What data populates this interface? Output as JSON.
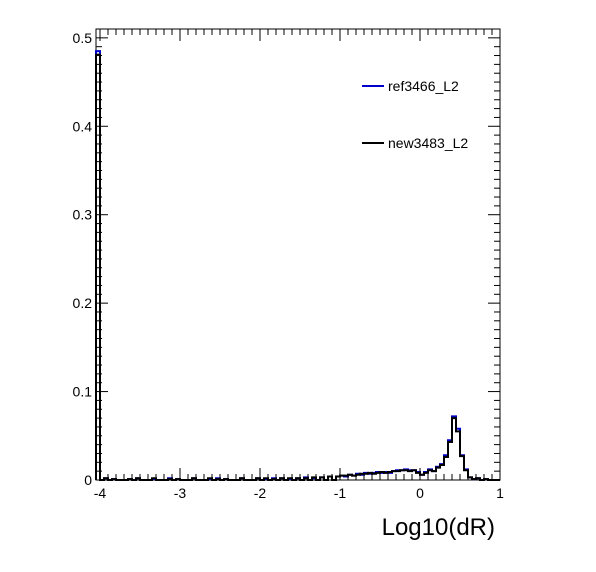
{
  "chart_data": {
    "type": "line",
    "title": "",
    "xlabel": "Log10(dR)",
    "ylabel": "",
    "xlim": [
      -4.05,
      1.0
    ],
    "ylim": [
      0,
      0.51
    ],
    "grid": false,
    "legend_position": "top-right",
    "x_ticks": [
      "-4",
      "-3",
      "-2",
      "-1",
      "0",
      "1"
    ],
    "y_ticks": [
      "0",
      "0.1",
      "0.2",
      "0.3",
      "0.4",
      "0.5"
    ],
    "bin_width": 0.05,
    "series": [
      {
        "name": "ref3466_L2",
        "color": "#0000cc",
        "bins": [
          [
            -4.05,
            0.485
          ],
          [
            -4.0,
            0.0
          ],
          [
            -3.95,
            0.002
          ],
          [
            -3.9,
            0.0
          ],
          [
            -3.85,
            0.001
          ],
          [
            -3.65,
            0.001
          ],
          [
            -3.55,
            0.002
          ],
          [
            -3.35,
            0.001
          ],
          [
            -3.15,
            0.002
          ],
          [
            -3.05,
            0.001
          ],
          [
            -2.85,
            0.002
          ],
          [
            -2.65,
            0.001
          ],
          [
            -2.55,
            0.002
          ],
          [
            -2.45,
            0.001
          ],
          [
            -2.25,
            0.002
          ],
          [
            -2.05,
            0.002
          ],
          [
            -1.95,
            0.001
          ],
          [
            -1.85,
            0.002
          ],
          [
            -1.75,
            0.002
          ],
          [
            -1.65,
            0.001
          ],
          [
            -1.55,
            0.002
          ],
          [
            -1.45,
            0.003
          ],
          [
            -1.35,
            0.002
          ],
          [
            -1.25,
            0.003
          ],
          [
            -1.15,
            0.004
          ],
          [
            -1.05,
            0.004
          ],
          [
            -1.0,
            0.005
          ],
          [
            -0.95,
            0.004
          ],
          [
            -0.9,
            0.006
          ],
          [
            -0.85,
            0.005
          ],
          [
            -0.8,
            0.007
          ],
          [
            -0.75,
            0.006
          ],
          [
            -0.7,
            0.008
          ],
          [
            -0.65,
            0.007
          ],
          [
            -0.6,
            0.008
          ],
          [
            -0.55,
            0.009
          ],
          [
            -0.5,
            0.008
          ],
          [
            -0.45,
            0.009
          ],
          [
            -0.4,
            0.008
          ],
          [
            -0.35,
            0.01
          ],
          [
            -0.3,
            0.011
          ],
          [
            -0.25,
            0.011
          ],
          [
            -0.2,
            0.012
          ],
          [
            -0.15,
            0.011
          ],
          [
            -0.1,
            0.011
          ],
          [
            -0.05,
            0.009
          ],
          [
            0.0,
            0.006
          ],
          [
            0.05,
            0.009
          ],
          [
            0.1,
            0.012
          ],
          [
            0.15,
            0.01
          ],
          [
            0.2,
            0.015
          ],
          [
            0.25,
            0.018
          ],
          [
            0.3,
            0.028
          ],
          [
            0.35,
            0.045
          ],
          [
            0.4,
            0.072
          ],
          [
            0.45,
            0.058
          ],
          [
            0.5,
            0.028
          ],
          [
            0.55,
            0.012
          ],
          [
            0.6,
            0.003
          ],
          [
            0.65,
            0.001
          ],
          [
            0.7,
            0.002
          ],
          [
            0.75,
            0.0
          ],
          [
            0.8,
            0.001
          ],
          [
            0.85,
            0.0
          ],
          [
            0.9,
            0.0
          ],
          [
            0.95,
            0.0
          ]
        ]
      },
      {
        "name": "new3483_L2",
        "color": "#000000",
        "bins": [
          [
            -4.05,
            0.481
          ],
          [
            -4.0,
            0.0
          ],
          [
            -3.95,
            0.002
          ],
          [
            -3.9,
            0.0
          ],
          [
            -3.85,
            0.001
          ],
          [
            -3.65,
            0.001
          ],
          [
            -3.55,
            0.002
          ],
          [
            -3.35,
            0.002
          ],
          [
            -3.15,
            0.001
          ],
          [
            -3.05,
            0.001
          ],
          [
            -2.85,
            0.002
          ],
          [
            -2.65,
            0.002
          ],
          [
            -2.55,
            0.001
          ],
          [
            -2.45,
            0.001
          ],
          [
            -2.25,
            0.002
          ],
          [
            -2.05,
            0.002
          ],
          [
            -1.95,
            0.002
          ],
          [
            -1.85,
            0.001
          ],
          [
            -1.75,
            0.002
          ],
          [
            -1.65,
            0.002
          ],
          [
            -1.55,
            0.002
          ],
          [
            -1.45,
            0.002
          ],
          [
            -1.35,
            0.003
          ],
          [
            -1.25,
            0.003
          ],
          [
            -1.15,
            0.004
          ],
          [
            -1.05,
            0.004
          ],
          [
            -1.0,
            0.005
          ],
          [
            -0.95,
            0.005
          ],
          [
            -0.9,
            0.006
          ],
          [
            -0.85,
            0.005
          ],
          [
            -0.8,
            0.006
          ],
          [
            -0.75,
            0.007
          ],
          [
            -0.7,
            0.007
          ],
          [
            -0.65,
            0.008
          ],
          [
            -0.6,
            0.007
          ],
          [
            -0.55,
            0.008
          ],
          [
            -0.5,
            0.009
          ],
          [
            -0.45,
            0.008
          ],
          [
            -0.4,
            0.009
          ],
          [
            -0.35,
            0.01
          ],
          [
            -0.3,
            0.01
          ],
          [
            -0.25,
            0.011
          ],
          [
            -0.2,
            0.011
          ],
          [
            -0.15,
            0.01
          ],
          [
            -0.1,
            0.011
          ],
          [
            -0.05,
            0.008
          ],
          [
            0.0,
            0.006
          ],
          [
            0.05,
            0.008
          ],
          [
            0.1,
            0.011
          ],
          [
            0.15,
            0.01
          ],
          [
            0.2,
            0.014
          ],
          [
            0.25,
            0.017
          ],
          [
            0.3,
            0.026
          ],
          [
            0.35,
            0.043
          ],
          [
            0.4,
            0.07
          ],
          [
            0.45,
            0.055
          ],
          [
            0.5,
            0.027
          ],
          [
            0.55,
            0.011
          ],
          [
            0.6,
            0.003
          ],
          [
            0.65,
            0.001
          ],
          [
            0.7,
            0.002
          ],
          [
            0.75,
            0.0
          ],
          [
            0.8,
            0.001
          ],
          [
            0.85,
            0.0
          ],
          [
            0.9,
            0.0
          ],
          [
            0.95,
            0.0
          ]
        ]
      }
    ]
  }
}
